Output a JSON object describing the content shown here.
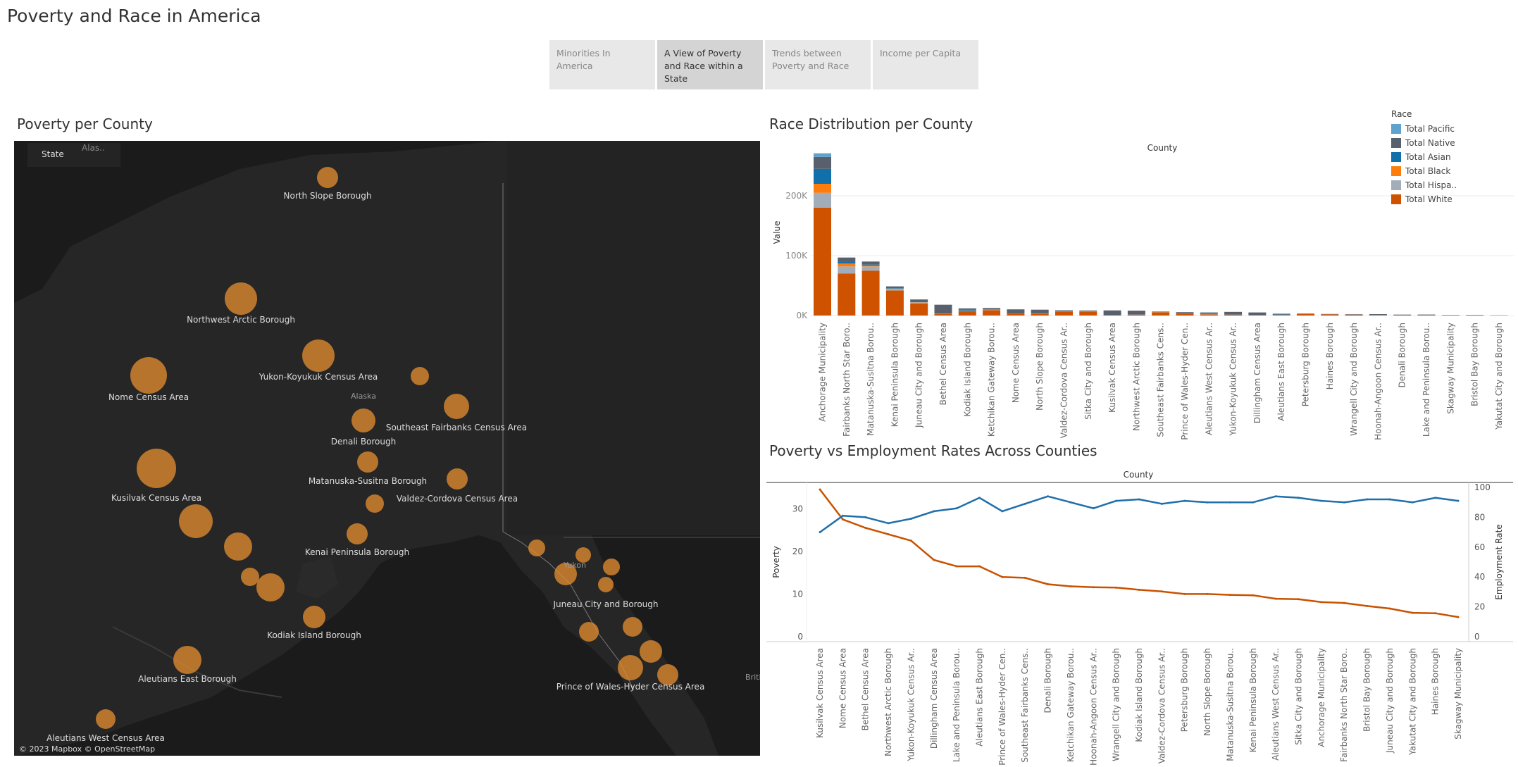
{
  "app": {
    "title": "Poverty and Race in America"
  },
  "tabs": [
    {
      "label": "Minorities In America",
      "active": false
    },
    {
      "label": "A View of Poverty and Race within a State",
      "active": true
    },
    {
      "label": "Trends between Poverty and Race",
      "active": false
    },
    {
      "label": "Income per Capita",
      "active": false
    }
  ],
  "map": {
    "title": "Poverty per County",
    "legend_label": "State",
    "legend_value": "Alas..",
    "attribution": "© 2023 Mapbox © OpenStreetMap",
    "region_labels": [
      "Alaska",
      "Yukon",
      "British Columb.."
    ],
    "bubble_color": "#e08a2e",
    "counties": [
      {
        "name": "North Slope Borough"
      },
      {
        "name": "Northwest Arctic Borough"
      },
      {
        "name": "Yukon-Koyukuk Census Area"
      },
      {
        "name": "Nome Census Area"
      },
      {
        "name": "Southeast Fairbanks Census Area"
      },
      {
        "name": "Denali Borough"
      },
      {
        "name": "Matanuska-Susitna Borough"
      },
      {
        "name": "Valdez-Cordova Census Area"
      },
      {
        "name": "Kusilvak Census Area"
      },
      {
        "name": "Kenai Peninsula Borough"
      },
      {
        "name": "Juneau City and Borough"
      },
      {
        "name": "Kodiak Island Borough"
      },
      {
        "name": "Aleutians East Borough"
      },
      {
        "name": "Prince of Wales-Hyder Census Area"
      },
      {
        "name": "Aleutians West Census Area"
      }
    ]
  },
  "colors": {
    "white": "#cf5200",
    "hispanic": "#a3acb9",
    "black": "#fc7d0b",
    "asian": "#1170aa",
    "native": "#57606c",
    "pacific": "#5fa2ce",
    "poverty_line": "#c85200",
    "employment_line": "#1f6fab"
  },
  "chart_data": [
    {
      "type": "bar",
      "title": "Race Distribution per County",
      "xlabel": "County",
      "ylabel": "Value",
      "legend_title": "Race",
      "legend_position": "top-right",
      "yticks": [
        "0K",
        "100K",
        "200K"
      ],
      "ylim": [
        0,
        280000
      ],
      "categories": [
        "Anchorage Municipality",
        "Fairbanks North Star Boro..",
        "Matanuska-Susitna Borou..",
        "Kenai Peninsula Borough",
        "Juneau City and Borough",
        "Bethel Census Area",
        "Kodiak Island Borough",
        "Ketchikan Gateway Borou..",
        "Nome Census Area",
        "North Slope Borough",
        "Valdez-Cordova Census Ar..",
        "Sitka City and Borough",
        "Kusilvak Census Area",
        "Northwest Arctic Borough",
        "Southeast Fairbanks Cens..",
        "Prince of Wales-Hyder Cen..",
        "Aleutians West Census Ar..",
        "Yukon-Koyukuk Census Ar..",
        "Dillingham Census Area",
        "Aleutians East Borough",
        "Petersburg Borough",
        "Haines Borough",
        "Wrangell City and Borough",
        "Hoonah-Angoon Census Ar..",
        "Denali Borough",
        "Lake and Peninsula Borou..",
        "Skagway Municipality",
        "Bristol Bay Borough",
        "Yakutat City and Borough"
      ],
      "series": [
        {
          "name": "Total White",
          "color_key": "white",
          "values": [
            180000,
            70000,
            75000,
            42000,
            20000,
            2500,
            7500,
            9000,
            2500,
            3000,
            6500,
            6000,
            500,
            1500,
            5500,
            3000,
            2000,
            1500,
            1000,
            700,
            2500,
            2000,
            1500,
            900,
            1200,
            300,
            800,
            400,
            200
          ]
        },
        {
          "name": "Total Hispa..",
          "color_key": "hispanic",
          "values": [
            25000,
            12000,
            7000,
            2500,
            2000,
            400,
            700,
            600,
            200,
            300,
            400,
            400,
            50,
            100,
            300,
            200,
            600,
            50,
            80,
            200,
            100,
            50,
            50,
            50,
            100,
            20,
            60,
            30,
            20
          ]
        },
        {
          "name": "Total Black",
          "color_key": "black",
          "values": [
            15000,
            5000,
            1500,
            400,
            300,
            50,
            150,
            100,
            30,
            50,
            60,
            50,
            10,
            10,
            80,
            20,
            150,
            10,
            20,
            20,
            10,
            10,
            10,
            10,
            20,
            5,
            10,
            10,
            5
          ]
        },
        {
          "name": "Total Asian",
          "color_key": "asian",
          "values": [
            25000,
            3500,
            1500,
            800,
            2000,
            100,
            1500,
            600,
            80,
            400,
            300,
            400,
            20,
            50,
            100,
            100,
            1500,
            30,
            50,
            600,
            100,
            50,
            50,
            50,
            50,
            10,
            50,
            50,
            10
          ]
        },
        {
          "name": "Total Native",
          "color_key": "native",
          "values": [
            20000,
            6000,
            5000,
            3000,
            2500,
            15000,
            2000,
            2200,
            7500,
            6000,
            1500,
            1500,
            8000,
            6500,
            700,
            2300,
            900,
            4500,
            4000,
            1500,
            700,
            500,
            600,
            1300,
            300,
            1300,
            80,
            600,
            400
          ]
        },
        {
          "name": "Total Pacific",
          "color_key": "pacific",
          "values": [
            6000,
            600,
            300,
            100,
            200,
            20,
            200,
            50,
            10,
            50,
            30,
            50,
            5,
            5,
            20,
            10,
            100,
            5,
            10,
            30,
            10,
            5,
            5,
            5,
            10,
            2,
            5,
            5,
            2
          ]
        }
      ]
    },
    {
      "type": "line",
      "title": "Poverty vs Employment Rates Across Counties",
      "xlabel": "County",
      "ylabel_left": "Poverty",
      "ylabel_right": "Employment Rate",
      "ylim_left": [
        0,
        35
      ],
      "ylim_right": [
        0,
        100
      ],
      "yticks_left": [
        "0",
        "10",
        "20",
        "30"
      ],
      "yticks_right": [
        "0",
        "20",
        "40",
        "60",
        "80",
        "100"
      ],
      "categories": [
        "Kusilvak Census Area",
        "Nome Census Area",
        "Bethel Census Area",
        "Northwest Arctic Borough",
        "Yukon-Koyukuk Census Ar..",
        "Dillingham Census Area",
        "Lake and Peninsula Borou..",
        "Aleutians East Borough",
        "Prince of Wales-Hyder Cen..",
        "Southeast Fairbanks Cens..",
        "Denali Borough",
        "Ketchikan Gateway Borou..",
        "Hoonah-Angoon Census Ar..",
        "Wrangell City and Borough",
        "Kodiak Island Borough",
        "Valdez-Cordova Census Ar..",
        "Petersburg Borough",
        "North Slope Borough",
        "Matanuska-Susitna Borou..",
        "Kenai Peninsula Borough",
        "Aleutians West Census Ar..",
        "Sitka City and Borough",
        "Anchorage Municipality",
        "Fairbanks North Star Boro..",
        "Bristol Bay Borough",
        "Juneau City and Borough",
        "Yakutat City and Borough",
        "Haines Borough",
        "Skagway Municipality"
      ],
      "series": [
        {
          "name": "Poverty",
          "color_key": "poverty_line",
          "axis": "left",
          "values": [
            34.5,
            27.5,
            25.5,
            24,
            22.5,
            18,
            16.5,
            16.5,
            14,
            13.8,
            12.3,
            11.8,
            11.6,
            11.5,
            11,
            10.6,
            10,
            10,
            9.8,
            9.7,
            8.9,
            8.8,
            8.1,
            7.9,
            7.2,
            6.6,
            5.6,
            5.5,
            4.6
          ]
        },
        {
          "name": "Employment Rate",
          "color_key": "employment_line",
          "axis": "right",
          "values": [
            70,
            81,
            80,
            76,
            79,
            84,
            86,
            93,
            84,
            89,
            94,
            90,
            86,
            91,
            92,
            89,
            91,
            90,
            90,
            90,
            94,
            93,
            91,
            90,
            92,
            92,
            90,
            93,
            91
          ]
        }
      ]
    }
  ]
}
